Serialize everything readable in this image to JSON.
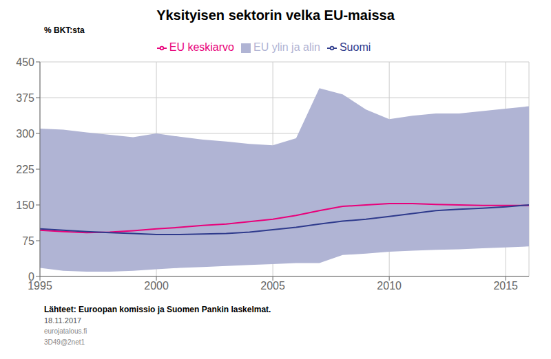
{
  "chart_data": {
    "type": "line",
    "title": "Yksityisen sektorin velka EU-maissa",
    "y_label": "% BKT:sta",
    "annotations": [
      "Lähteet: Euroopan komissio ja Suomen Pankin laskelmat.",
      "18.11.2017",
      "eurojatalous.fi",
      "3D49@2net1"
    ],
    "x": [
      1995,
      1996,
      1997,
      1998,
      1999,
      2000,
      2001,
      2002,
      2003,
      2004,
      2005,
      2006,
      2007,
      2008,
      2009,
      2010,
      2011,
      2012,
      2013,
      2014,
      2015,
      2016
    ],
    "xlim": [
      1995,
      2016
    ],
    "xticks": [
      1995,
      2000,
      2005,
      2010,
      2015
    ],
    "ylim": [
      0,
      450
    ],
    "yticks": [
      0,
      75,
      150,
      225,
      300,
      375,
      450
    ],
    "grid": true,
    "legend": "top",
    "series": [
      {
        "name": "EU ylin ja alin",
        "type": "band",
        "color": "#b0b4d4",
        "low": [
          18,
          12,
          10,
          10,
          12,
          15,
          18,
          20,
          22,
          24,
          26,
          28,
          28,
          45,
          48,
          52,
          54,
          56,
          57,
          59,
          61,
          63
        ],
        "high": [
          310,
          308,
          302,
          297,
          292,
          300,
          293,
          287,
          283,
          278,
          275,
          290,
          395,
          382,
          350,
          330,
          337,
          342,
          342,
          347,
          352,
          357
        ]
      },
      {
        "name": "EU keskiarvo",
        "type": "line",
        "color": "#e8007a",
        "values": [
          97,
          94,
          92,
          93,
          96,
          100,
          103,
          107,
          110,
          115,
          120,
          128,
          138,
          147,
          150,
          153,
          153,
          151,
          150,
          149,
          149,
          149
        ]
      },
      {
        "name": "Suomi",
        "type": "line",
        "color": "#2e3a8c",
        "values": [
          100,
          97,
          94,
          92,
          90,
          88,
          88,
          89,
          90,
          93,
          98,
          103,
          110,
          116,
          120,
          126,
          132,
          138,
          141,
          143,
          146,
          150
        ]
      }
    ]
  }
}
